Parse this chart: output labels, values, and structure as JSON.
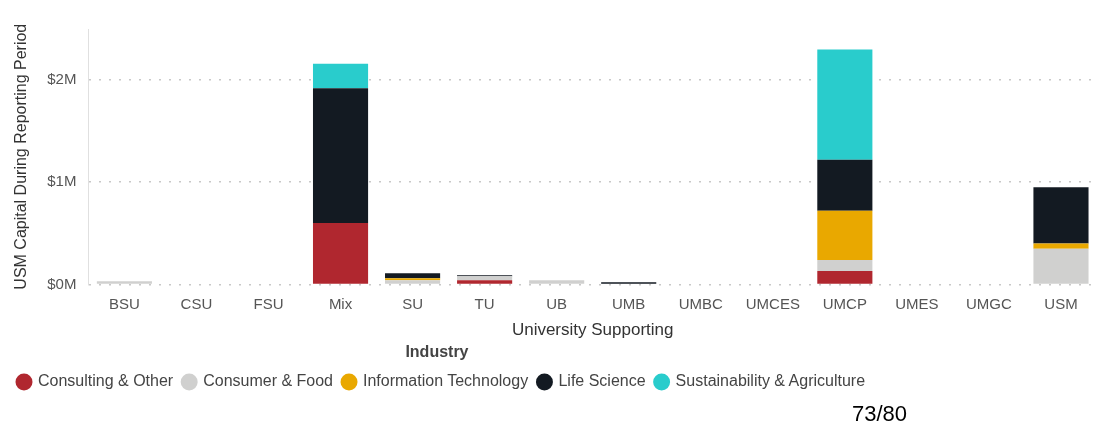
{
  "chart_data": {
    "type": "bar",
    "stacked": true,
    "xlabel": "University Supporting",
    "ylabel": "USM Capital During Reporting Period",
    "legend_title": "Industry",
    "legend": "bottom",
    "grid": "y",
    "categories": [
      "BSU",
      "CSU",
      "FSU",
      "Mix",
      "SU",
      "TU",
      "UB",
      "UMB",
      "UMBC",
      "UMCES",
      "UMCP",
      "UMES",
      "UMGC",
      "USM"
    ],
    "ylim": [
      0,
      2.5
    ],
    "yticks": [
      {
        "value": 0,
        "label": "$0M"
      },
      {
        "value": 1,
        "label": "$1M"
      },
      {
        "value": 2,
        "label": "$2M"
      }
    ],
    "series": [
      {
        "name": "Consulting & Other",
        "color": "#b0272f",
        "values": [
          null,
          null,
          null,
          0.6,
          null,
          0.04,
          null,
          null,
          null,
          null,
          0.13,
          null,
          null,
          null
        ]
      },
      {
        "name": "Consumer & Food",
        "color": "#d0d0cf",
        "values": [
          0.03,
          null,
          null,
          null,
          0.04,
          0.04,
          0.04,
          null,
          null,
          null,
          0.11,
          null,
          null,
          0.35
        ]
      },
      {
        "name": "Information Technology",
        "color": "#e9a800",
        "values": [
          null,
          null,
          null,
          null,
          0.02,
          null,
          null,
          null,
          null,
          null,
          0.48,
          null,
          null,
          0.05
        ]
      },
      {
        "name": "Life Science",
        "color": "#131a22",
        "values": [
          null,
          null,
          null,
          1.32,
          0.05,
          0.01,
          null,
          0.02,
          null,
          null,
          0.5,
          null,
          null,
          0.55
        ]
      },
      {
        "name": "Sustainability & Agriculture",
        "color": "#29cccc",
        "values": [
          null,
          null,
          null,
          0.24,
          null,
          null,
          null,
          null,
          null,
          null,
          1.08,
          null,
          null,
          null
        ]
      }
    ],
    "annotations": [
      "73/80"
    ]
  }
}
